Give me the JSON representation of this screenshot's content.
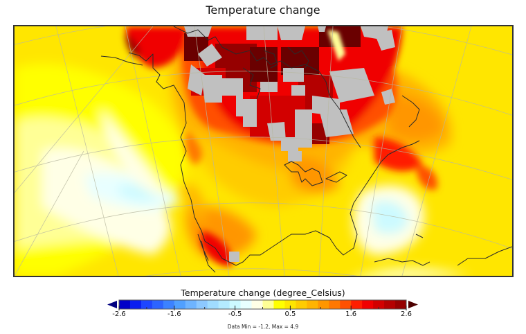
{
  "title": "Temperature change",
  "map": {
    "region": "North America",
    "missing_data_color": "#c0c0c0",
    "coastline_color": "#2a2a2a",
    "graticule_color": "#b8b8a0"
  },
  "colorbar": {
    "title": "Temperature change (degree_Celsius)",
    "min": -2.6,
    "max": 2.6,
    "tick_labels": [
      "-2.6",
      "-1.6",
      "-0.5",
      "0.5",
      "1.6",
      "2.6"
    ],
    "tick_values": [
      -2.6,
      -1.6,
      -0.5,
      0.5,
      1.6,
      2.6
    ],
    "under_color": "#000080",
    "over_color": "#4d0000",
    "bins": [
      "#0000c8",
      "#0a1ef0",
      "#1e46ff",
      "#2c64ff",
      "#3c82ff",
      "#50a0ff",
      "#6eb4ff",
      "#8cc8ff",
      "#a0dcff",
      "#b4ebff",
      "#ccfaff",
      "#e8ffff",
      "#ffffe6",
      "#ffff96",
      "#ffff00",
      "#ffe600",
      "#ffcc00",
      "#ffb400",
      "#ff9600",
      "#ff7800",
      "#ff5000",
      "#ff1e00",
      "#f00000",
      "#d20000",
      "#b40000",
      "#960000"
    ]
  },
  "data_range": "Data Min = -1.2, Max = 4.9"
}
